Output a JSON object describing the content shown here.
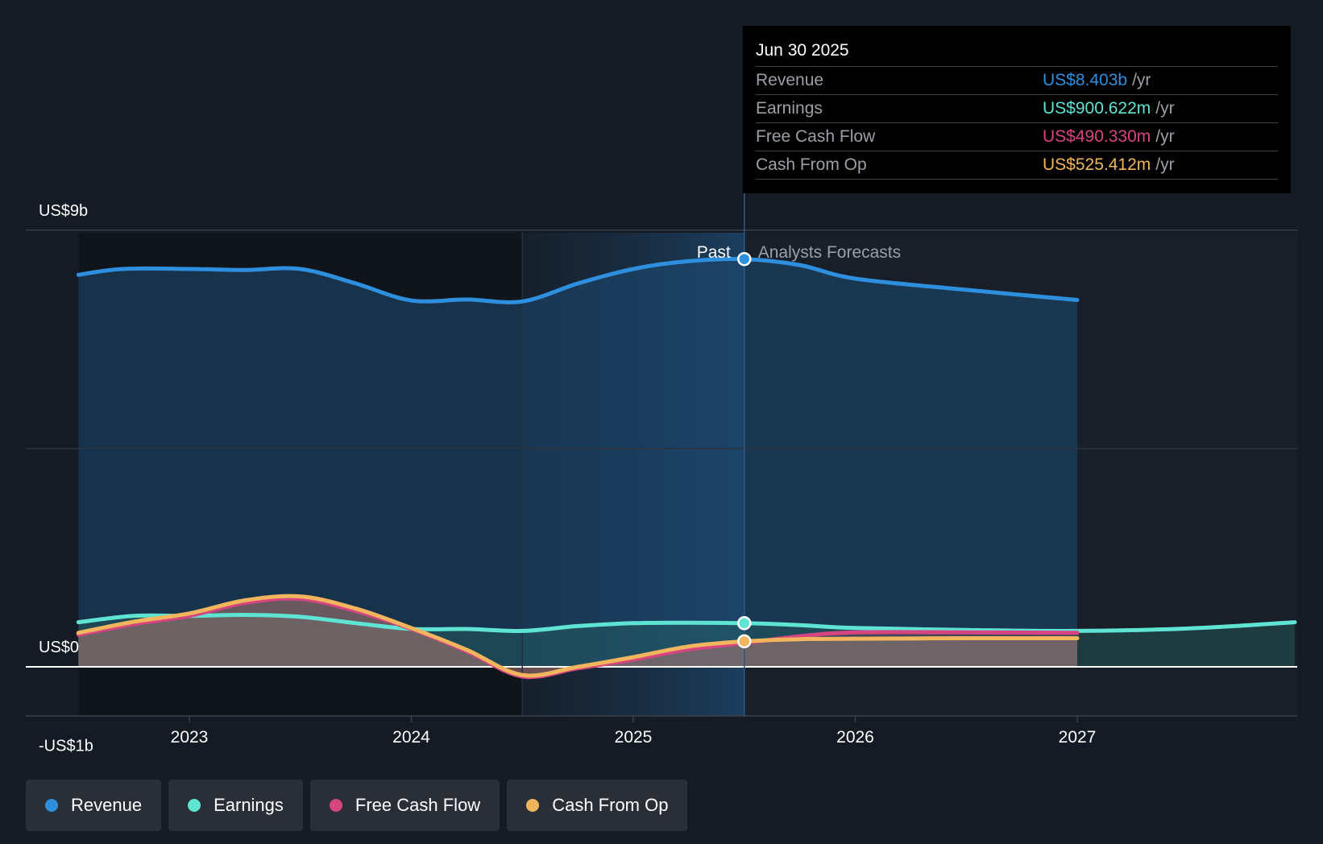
{
  "chart_data": {
    "type": "line",
    "x_axis": {
      "ticks": [
        "2023",
        "2024",
        "2025",
        "2026",
        "2027"
      ],
      "range": [
        2022.5,
        2027.98
      ]
    },
    "y_axis": {
      "labels": [
        "US$9b",
        "US$0",
        "-US$1b"
      ],
      "range": [
        -1,
        9
      ]
    },
    "past_label": "Past",
    "forecast_label": "Analysts Forecasts",
    "divider_x": 2025.5,
    "series": [
      {
        "name": "Revenue",
        "color": "#2e8fde",
        "points": [
          [
            2022.5,
            8.08
          ],
          [
            2022.7,
            8.2
          ],
          [
            2023.0,
            8.2
          ],
          [
            2023.25,
            8.18
          ],
          [
            2023.5,
            8.2
          ],
          [
            2023.75,
            7.9
          ],
          [
            2024.0,
            7.55
          ],
          [
            2024.25,
            7.57
          ],
          [
            2024.5,
            7.53
          ],
          [
            2024.75,
            7.9
          ],
          [
            2025.0,
            8.2
          ],
          [
            2025.25,
            8.36
          ],
          [
            2025.5,
            8.403
          ],
          [
            2025.75,
            8.28
          ],
          [
            2026.0,
            8.0
          ],
          [
            2026.5,
            7.77
          ],
          [
            2027.0,
            7.56
          ]
        ]
      },
      {
        "name": "Earnings",
        "color": "#5fe3d3",
        "points": [
          [
            2022.5,
            0.92
          ],
          [
            2022.75,
            1.05
          ],
          [
            2023.0,
            1.05
          ],
          [
            2023.25,
            1.07
          ],
          [
            2023.5,
            1.03
          ],
          [
            2023.75,
            0.9
          ],
          [
            2024.0,
            0.78
          ],
          [
            2024.25,
            0.78
          ],
          [
            2024.5,
            0.74
          ],
          [
            2024.75,
            0.84
          ],
          [
            2025.0,
            0.9
          ],
          [
            2025.25,
            0.91
          ],
          [
            2025.5,
            0.9
          ],
          [
            2025.75,
            0.86
          ],
          [
            2026.0,
            0.8
          ],
          [
            2026.5,
            0.76
          ],
          [
            2027.0,
            0.74
          ],
          [
            2027.5,
            0.79
          ],
          [
            2027.98,
            0.92
          ]
        ]
      },
      {
        "name": "Free Cash Flow",
        "color": "#d6457f",
        "points": [
          [
            2022.5,
            0.66
          ],
          [
            2022.75,
            0.88
          ],
          [
            2023.0,
            1.05
          ],
          [
            2023.25,
            1.32
          ],
          [
            2023.5,
            1.4
          ],
          [
            2023.75,
            1.15
          ],
          [
            2024.0,
            0.78
          ],
          [
            2024.25,
            0.32
          ],
          [
            2024.5,
            -0.2
          ],
          [
            2024.75,
            -0.03
          ],
          [
            2025.0,
            0.15
          ],
          [
            2025.25,
            0.36
          ],
          [
            2025.5,
            0.49
          ],
          [
            2025.75,
            0.63
          ],
          [
            2026.0,
            0.71
          ],
          [
            2026.5,
            0.71
          ],
          [
            2027.0,
            0.7
          ]
        ]
      },
      {
        "name": "Cash From Op",
        "color": "#f0b55d",
        "points": [
          [
            2022.5,
            0.7
          ],
          [
            2022.75,
            0.93
          ],
          [
            2023.0,
            1.1
          ],
          [
            2023.25,
            1.37
          ],
          [
            2023.5,
            1.45
          ],
          [
            2023.75,
            1.2
          ],
          [
            2024.0,
            0.8
          ],
          [
            2024.25,
            0.35
          ],
          [
            2024.5,
            -0.17
          ],
          [
            2024.75,
            0.0
          ],
          [
            2025.0,
            0.2
          ],
          [
            2025.25,
            0.42
          ],
          [
            2025.5,
            0.525
          ],
          [
            2025.75,
            0.57
          ],
          [
            2026.0,
            0.58
          ],
          [
            2026.5,
            0.59
          ],
          [
            2027.0,
            0.59
          ]
        ]
      }
    ],
    "markers": [
      {
        "series": "Revenue",
        "x": 2025.5,
        "y": 8.403
      },
      {
        "series": "Earnings",
        "x": 2025.5,
        "y": 0.9
      },
      {
        "series": "Cash From Op",
        "x": 2025.5,
        "y": 0.525
      }
    ]
  },
  "tooltip": {
    "date": "Jun 30 2025",
    "rows": [
      {
        "label": "Revenue",
        "value": "US$8.403b",
        "unit": "/yr",
        "color": "#2e8fde"
      },
      {
        "label": "Earnings",
        "value": "US$900.622m",
        "unit": "/yr",
        "color": "#5fe3d3"
      },
      {
        "label": "Free Cash Flow",
        "value": "US$490.330m",
        "unit": "/yr",
        "color": "#d6457f"
      },
      {
        "label": "Cash From Op",
        "value": "US$525.412m",
        "unit": "/yr",
        "color": "#f0b55d"
      }
    ]
  },
  "legend": [
    {
      "label": "Revenue",
      "color": "#2e8fde"
    },
    {
      "label": "Earnings",
      "color": "#5fe3d3"
    },
    {
      "label": "Free Cash Flow",
      "color": "#d6457f"
    },
    {
      "label": "Cash From Op",
      "color": "#f0b55d"
    }
  ]
}
